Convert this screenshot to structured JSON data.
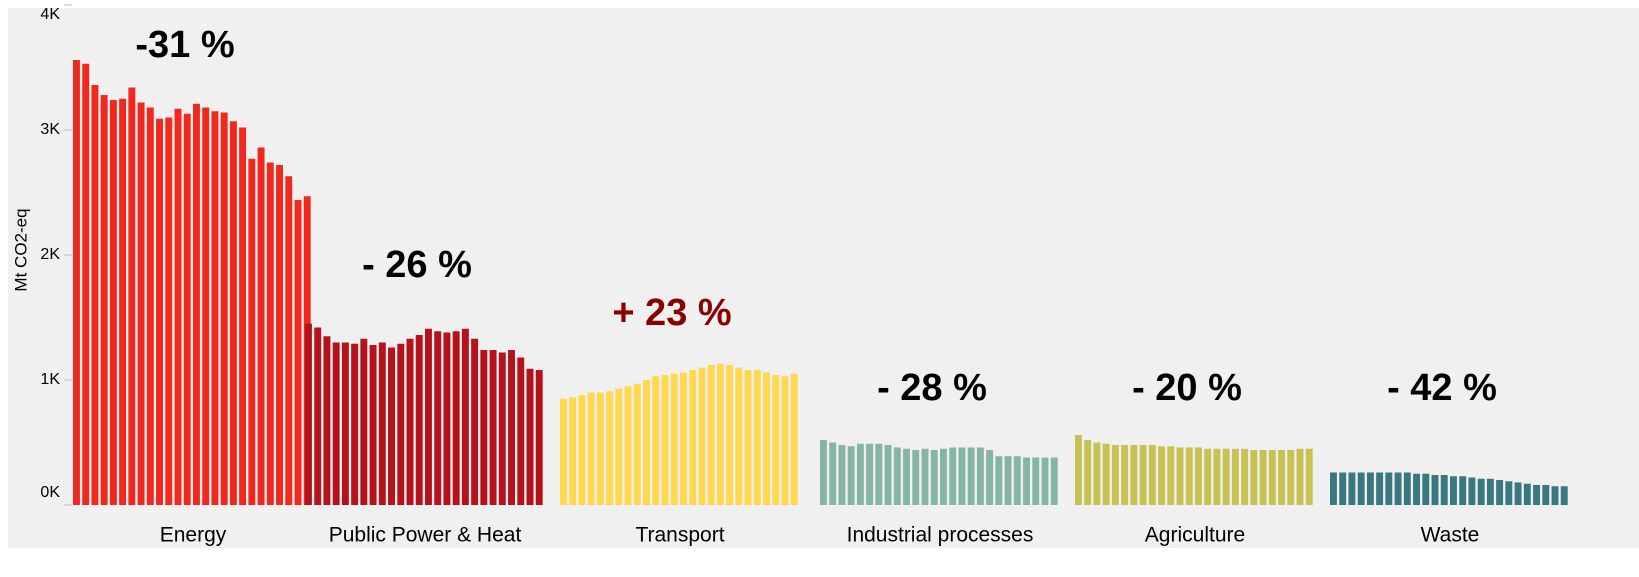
{
  "chart_data": {
    "type": "bar",
    "ylabel": "Mt CO2-eq",
    "ylim": [
      0,
      4000
    ],
    "yticks": [
      {
        "value": 0,
        "label": "0K"
      },
      {
        "value": 1000,
        "label": "1K"
      },
      {
        "value": 2000,
        "label": "2K"
      },
      {
        "value": 3000,
        "label": "3K"
      },
      {
        "value": 4000,
        "label": "4K"
      }
    ],
    "series": [
      {
        "name": "Energy",
        "color": "#f0281e",
        "annotation": "-31 %",
        "annotation_color": "#000000",
        "values": [
          3560,
          3530,
          3360,
          3280,
          3240,
          3250,
          3340,
          3220,
          3180,
          3090,
          3100,
          3170,
          3130,
          3210,
          3180,
          3150,
          3140,
          3070,
          3020,
          2770,
          2860,
          2740,
          2720,
          2630,
          2440,
          2470
        ]
      },
      {
        "name": "Public Power & Heat",
        "color": "#b5121b",
        "annotation": "- 26 %",
        "annotation_color": "#000000",
        "values": [
          1450,
          1420,
          1350,
          1300,
          1300,
          1290,
          1330,
          1280,
          1300,
          1260,
          1290,
          1330,
          1360,
          1410,
          1390,
          1380,
          1390,
          1410,
          1330,
          1240,
          1240,
          1220,
          1240,
          1180,
          1090,
          1080
        ]
      },
      {
        "name": "Transport",
        "color": "#ffd84f",
        "annotation": "+ 23 %",
        "annotation_color": "#8b0000",
        "values": [
          850,
          860,
          880,
          900,
          900,
          910,
          930,
          950,
          970,
          1000,
          1030,
          1040,
          1050,
          1060,
          1080,
          1100,
          1120,
          1130,
          1120,
          1100,
          1080,
          1080,
          1060,
          1040,
          1030,
          1050
        ]
      },
      {
        "name": "Industrial processes",
        "color": "#86b5a5",
        "annotation": "- 28 %",
        "annotation_color": "#000000",
        "values": [
          520,
          500,
          480,
          470,
          490,
          490,
          490,
          480,
          460,
          450,
          440,
          450,
          440,
          450,
          460,
          460,
          460,
          460,
          440,
          390,
          390,
          390,
          380,
          380,
          380,
          380
        ]
      },
      {
        "name": "Agriculture",
        "color": "#c8c254",
        "annotation": "- 20 %",
        "annotation_color": "#000000",
        "values": [
          560,
          520,
          500,
          490,
          480,
          480,
          480,
          480,
          480,
          470,
          470,
          460,
          460,
          460,
          450,
          450,
          450,
          450,
          450,
          440,
          440,
          440,
          440,
          440,
          450,
          450
        ]
      },
      {
        "name": "Waste",
        "color": "#3a7880",
        "annotation": "- 42 %",
        "annotation_color": "#000000",
        "values": [
          260,
          260,
          260,
          260,
          260,
          260,
          260,
          260,
          260,
          250,
          250,
          240,
          240,
          230,
          230,
          220,
          210,
          210,
          200,
          190,
          180,
          170,
          160,
          160,
          150,
          150
        ]
      }
    ]
  }
}
